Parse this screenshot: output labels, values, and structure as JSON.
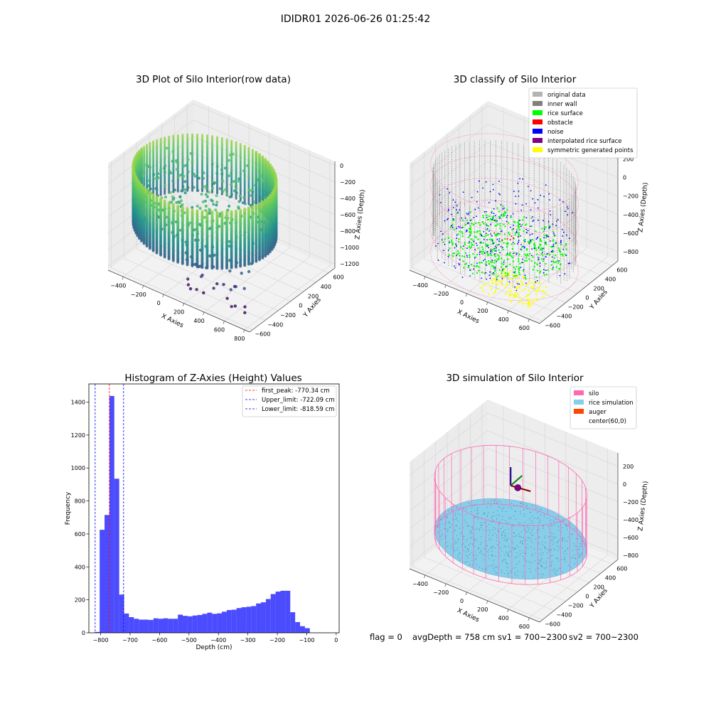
{
  "figure_title": "IDIDR01 2026-06-26 01:25:42",
  "status_line": {
    "flag": "flag = 0",
    "avg_depth": "avgDepth = 758 cm",
    "sv1": "sv1 = 700~2300",
    "sv2": "sv2 = 700~2300"
  },
  "chart_data": [
    {
      "type": "scatter",
      "title": "3D Plot of Silo Interior(row data)",
      "xlabel": "X Axies",
      "ylabel": "Y Axies",
      "zlabel": "Z Axies (Depth)",
      "x_ticks": [
        "−400",
        "−200",
        "0",
        "200",
        "400",
        "600",
        "800"
      ],
      "y_ticks": [
        "−600",
        "−400",
        "−200",
        "0",
        "200",
        "400",
        "600"
      ],
      "z_ticks": [
        "0",
        "−200",
        "−400",
        "−600",
        "−800",
        "−1000",
        "−1200"
      ],
      "xlim": [
        -550,
        850
      ],
      "ylim": [
        -650,
        700
      ],
      "zlim": [
        -1250,
        50
      ],
      "silo": {
        "radius": 600,
        "rim_z": -150,
        "floor_z": -850
      },
      "colormap": "viridis",
      "grid": true
    },
    {
      "type": "scatter",
      "title": "3D classify of Silo Interior",
      "xlabel": "X Axies",
      "ylabel": "Y Axies",
      "zlabel": "Z Axies (Depth)",
      "x_ticks": [
        "−400",
        "−200",
        "0",
        "200",
        "400",
        "600"
      ],
      "y_ticks": [
        "−600",
        "−400",
        "−200",
        "0",
        "200",
        "400",
        "600"
      ],
      "z_ticks": [
        "200",
        "0",
        "−200",
        "−400",
        "−600",
        "−800"
      ],
      "xlim": [
        -550,
        700
      ],
      "ylim": [
        -650,
        700
      ],
      "zlim": [
        -900,
        250
      ],
      "legend_position": "top-right",
      "legend": [
        {
          "label": "original data",
          "color": "#b3b3b3"
        },
        {
          "label": "inner wall",
          "color": "#808080"
        },
        {
          "label": "rice surface",
          "color": "#00ff00"
        },
        {
          "label": "obstacle",
          "color": "#ff0000"
        },
        {
          "label": "noise",
          "color": "#0000ff"
        },
        {
          "label": "interpolated rice surface",
          "color": "#800080"
        },
        {
          "label": "symmetric generated points",
          "color": "#ffff00"
        }
      ],
      "grid": true
    },
    {
      "type": "bar",
      "title": "Histogram of Z-Axies (Height) Values",
      "xlabel": "Depth (cm)",
      "ylabel": "Frequency",
      "xlim": [
        -840,
        10
      ],
      "ylim": [
        0,
        1510
      ],
      "x_ticks": [
        -800,
        -700,
        -600,
        -500,
        -400,
        -300,
        -200,
        -100,
        0
      ],
      "y_ticks": [
        0,
        200,
        400,
        600,
        800,
        1000,
        1200,
        1400
      ],
      "bar_color": "#0000ff",
      "bin_width": 16.6,
      "bin_start": -820,
      "values": [
        5,
        625,
        715,
        1437,
        935,
        232,
        117,
        95,
        85,
        80,
        80,
        78,
        88,
        85,
        88,
        85,
        85,
        110,
        103,
        100,
        105,
        108,
        115,
        122,
        115,
        118,
        128,
        138,
        140,
        150,
        155,
        158,
        162,
        178,
        185,
        205,
        235,
        250,
        255,
        255,
        125,
        65,
        40,
        28
      ],
      "reference_lines": [
        {
          "label": "first_peak: -770.34 cm",
          "value": -770.34,
          "color": "#ff0000"
        },
        {
          "label": "Upper_limit: -722.09 cm",
          "value": -722.09,
          "color": "#0000ff"
        },
        {
          "label": "Lower_limit: -818.59 cm",
          "value": -818.59,
          "color": "#0000ff"
        }
      ],
      "legend_position": "top-right",
      "grid": false
    },
    {
      "type": "scatter",
      "title": "3D simulation of Silo Interior",
      "xlabel": "X Axies",
      "ylabel": "Y Axies",
      "zlabel": "Z Axies (Depth)",
      "x_ticks": [
        "−400",
        "−200",
        "0",
        "200",
        "400",
        "600"
      ],
      "y_ticks": [
        "−600",
        "−400",
        "−200",
        "0",
        "200",
        "400",
        "600"
      ],
      "z_ticks": [
        "200",
        "0",
        "−200",
        "−400",
        "−600",
        "−800"
      ],
      "xlim": [
        -550,
        700
      ],
      "ylim": [
        -650,
        700
      ],
      "zlim": [
        -850,
        350
      ],
      "legend_position": "top-right",
      "legend": [
        {
          "label": "silo",
          "color": "#ff69b4"
        },
        {
          "label": "rice simulation",
          "color": "#87ceeb"
        },
        {
          "label": "auger",
          "color": "#ff4500"
        },
        {
          "label": "center(60,0)",
          "color": ""
        }
      ],
      "grid": true
    }
  ]
}
